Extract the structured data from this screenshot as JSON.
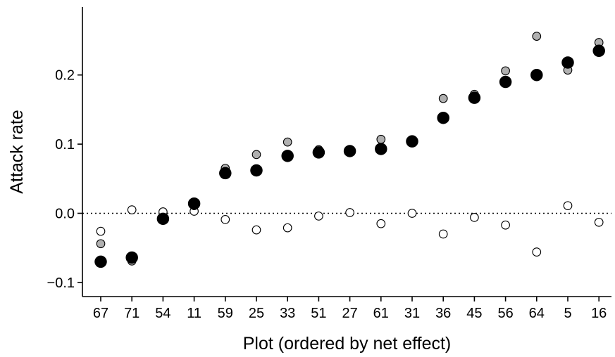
{
  "chart_data": {
    "type": "scatter",
    "title": "",
    "xlabel": "Plot (ordered by net effect)",
    "ylabel": "Attack rate",
    "categories": [
      "67",
      "71",
      "54",
      "11",
      "59",
      "25",
      "33",
      "51",
      "27",
      "61",
      "31",
      "36",
      "45",
      "56",
      "64",
      "5",
      "16"
    ],
    "ylim": [
      -0.12,
      0.3
    ],
    "yticks": [
      -0.1,
      0.0,
      0.1,
      0.2
    ],
    "ytick_labels": [
      "−0.1",
      "0.0",
      "0.1",
      "0.2"
    ],
    "reference_line": {
      "y": 0.0,
      "style": "dotted"
    },
    "grid": false,
    "legend": "none",
    "series": [
      {
        "marker": "open",
        "fill": "#ffffff",
        "stroke": "#000000",
        "values": [
          -0.026,
          0.005,
          0.002,
          0.003,
          -0.009,
          -0.024,
          -0.021,
          -0.004,
          0.001,
          -0.015,
          0.0,
          -0.03,
          -0.006,
          -0.017,
          -0.056,
          0.011,
          -0.013
        ]
      },
      {
        "marker": "grey",
        "fill": "#b0b0b0",
        "stroke": "#000000",
        "values": [
          -0.044,
          -0.069,
          -0.009,
          0.011,
          0.065,
          0.085,
          0.103,
          0.092,
          0.088,
          0.107,
          0.105,
          0.166,
          0.172,
          0.206,
          0.256,
          0.207,
          0.247
        ]
      },
      {
        "marker": "filled",
        "fill": "#000000",
        "stroke": "#000000",
        "values": [
          -0.07,
          -0.064,
          -0.008,
          0.014,
          0.058,
          0.062,
          0.083,
          0.088,
          0.09,
          0.093,
          0.104,
          0.138,
          0.167,
          0.19,
          0.2,
          0.218,
          0.235
        ]
      }
    ]
  }
}
